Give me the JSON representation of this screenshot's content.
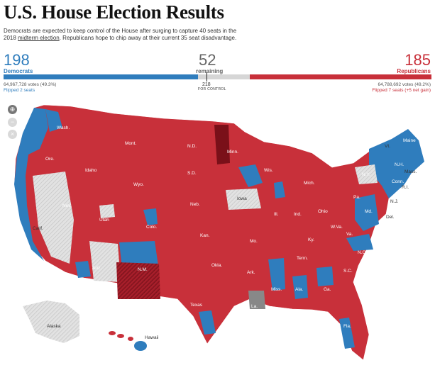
{
  "header": {
    "title": "U.S. House Election Results",
    "dek_part1": "Democrats are expected to keep control of the House after surging to capture 40 seats in the 2018",
    "dek_link": "midterm election",
    "dek_part2": ". Republicans hope to chip away at their current 35 seat disadvantage."
  },
  "colors": {
    "dem": "#2f7dbd",
    "rep": "#c8303a",
    "rep_flip": "#7a1019",
    "undecided": "#d6d6d6",
    "other": "#888888"
  },
  "tally": {
    "dem": {
      "seats": "198",
      "label": "Democrats",
      "votes": "64,967,728 votes (49.3%)",
      "flipped": "Flipped 2 seats"
    },
    "remaining": {
      "seats": "52",
      "label": "remaining"
    },
    "rep": {
      "seats": "185",
      "label": "Republicans",
      "votes": "64,788,692 votes (49.2%)",
      "flipped": "Flipped 7 seats (+5 net gain)"
    },
    "control_number": "218",
    "control_label": "FOR CONTROL",
    "bar_fractions": {
      "dem": 0.455,
      "remaining": 0.12,
      "rep": 0.425
    }
  },
  "map_controls": {
    "zoom_in": "search-plus-icon",
    "zoom_out": "minus-icon",
    "close": "close-icon"
  },
  "state_labels": {
    "wash": "Wash.",
    "ore": "Ore.",
    "idaho": "Idaho",
    "mont": "Mont.",
    "wyo": "Wyo.",
    "nd": "N.D.",
    "sd": "S.D.",
    "neb": "Neb.",
    "kan": "Kan.",
    "okla": "Okla.",
    "texas": "Texas",
    "nm": "N.M.",
    "ariz": "Ariz.",
    "colo": "Colo.",
    "utah": "Utah",
    "nev": "Nev.",
    "calif": "Calif.",
    "minn": "Minn.",
    "iowa": "Iowa",
    "mo": "Mo.",
    "ark": "Ark.",
    "la": "La.",
    "wis": "Wis.",
    "mich": "Mich.",
    "ill": "Ill.",
    "ind": "Ind.",
    "ohio": "Ohio",
    "ky": "Ky.",
    "tenn": "Tenn.",
    "miss": "Miss.",
    "ala": "Ala.",
    "ga": "Ga.",
    "fla": "Fla.",
    "sc": "S.C.",
    "nc": "N.C.",
    "va": "Va.",
    "wva": "W.Va.",
    "pa": "Pa.",
    "ny": "N.Y.",
    "vt": "Vt.",
    "nh": "N.H.",
    "maine": "Maine",
    "mass": "Mass.",
    "conn": "Conn.",
    "ri": "R.I.",
    "nj": "N.J.",
    "del": "Del.",
    "md": "Md.",
    "alaska": "Alaska",
    "hawaii": "Hawaii"
  }
}
